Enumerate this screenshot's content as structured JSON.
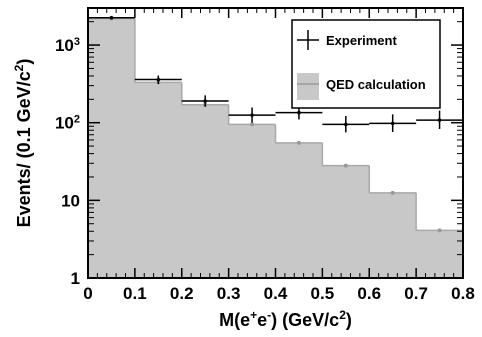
{
  "chart_data": {
    "type": "bar",
    "x_bin_edges": [
      0,
      0.1,
      0.2,
      0.3,
      0.4,
      0.5,
      0.6,
      0.7,
      0.8
    ],
    "xlim": [
      0,
      0.8
    ],
    "ylim": [
      1,
      3000
    ],
    "yscale": "log",
    "grid": false,
    "legend_position": "top-right",
    "xlabel": {
      "base": "M(e",
      "sup1": "+",
      "mid": "e",
      "sup2": "-",
      "rest": ") (GeV/c",
      "sup3": "2",
      "end": ")"
    },
    "ylabel": {
      "main": "Events/ (0.1 GeV/c",
      "sup": "2",
      "end": ")"
    },
    "x_tick_labels": [
      "0",
      "0.1",
      "0.2",
      "0.3",
      "0.4",
      "0.5",
      "0.6",
      "0.7",
      "0.8"
    ],
    "y_ticks": [
      {
        "value": 1,
        "label": "1",
        "sup": ""
      },
      {
        "value": 10,
        "label": "10",
        "sup": ""
      },
      {
        "value": 100,
        "label": "10",
        "sup": "2"
      },
      {
        "value": 1000,
        "label": "10",
        "sup": "3"
      }
    ],
    "series": [
      {
        "name": "QED calculation",
        "style": "filled-histogram",
        "color": "#c8c8c8",
        "values": [
          2200,
          330,
          170,
          95,
          55,
          28,
          12.5,
          4.1
        ]
      },
      {
        "name": "Experiment",
        "style": "points-with-errorbars",
        "color": "#000000",
        "values": [
          2250,
          360,
          190,
          125,
          135,
          95,
          98,
          108
        ],
        "err_low": [
          80,
          45,
          30,
          25,
          25,
          20,
          22,
          25
        ],
        "err_high": [
          80,
          45,
          35,
          32,
          32,
          27,
          30,
          35
        ]
      }
    ]
  }
}
